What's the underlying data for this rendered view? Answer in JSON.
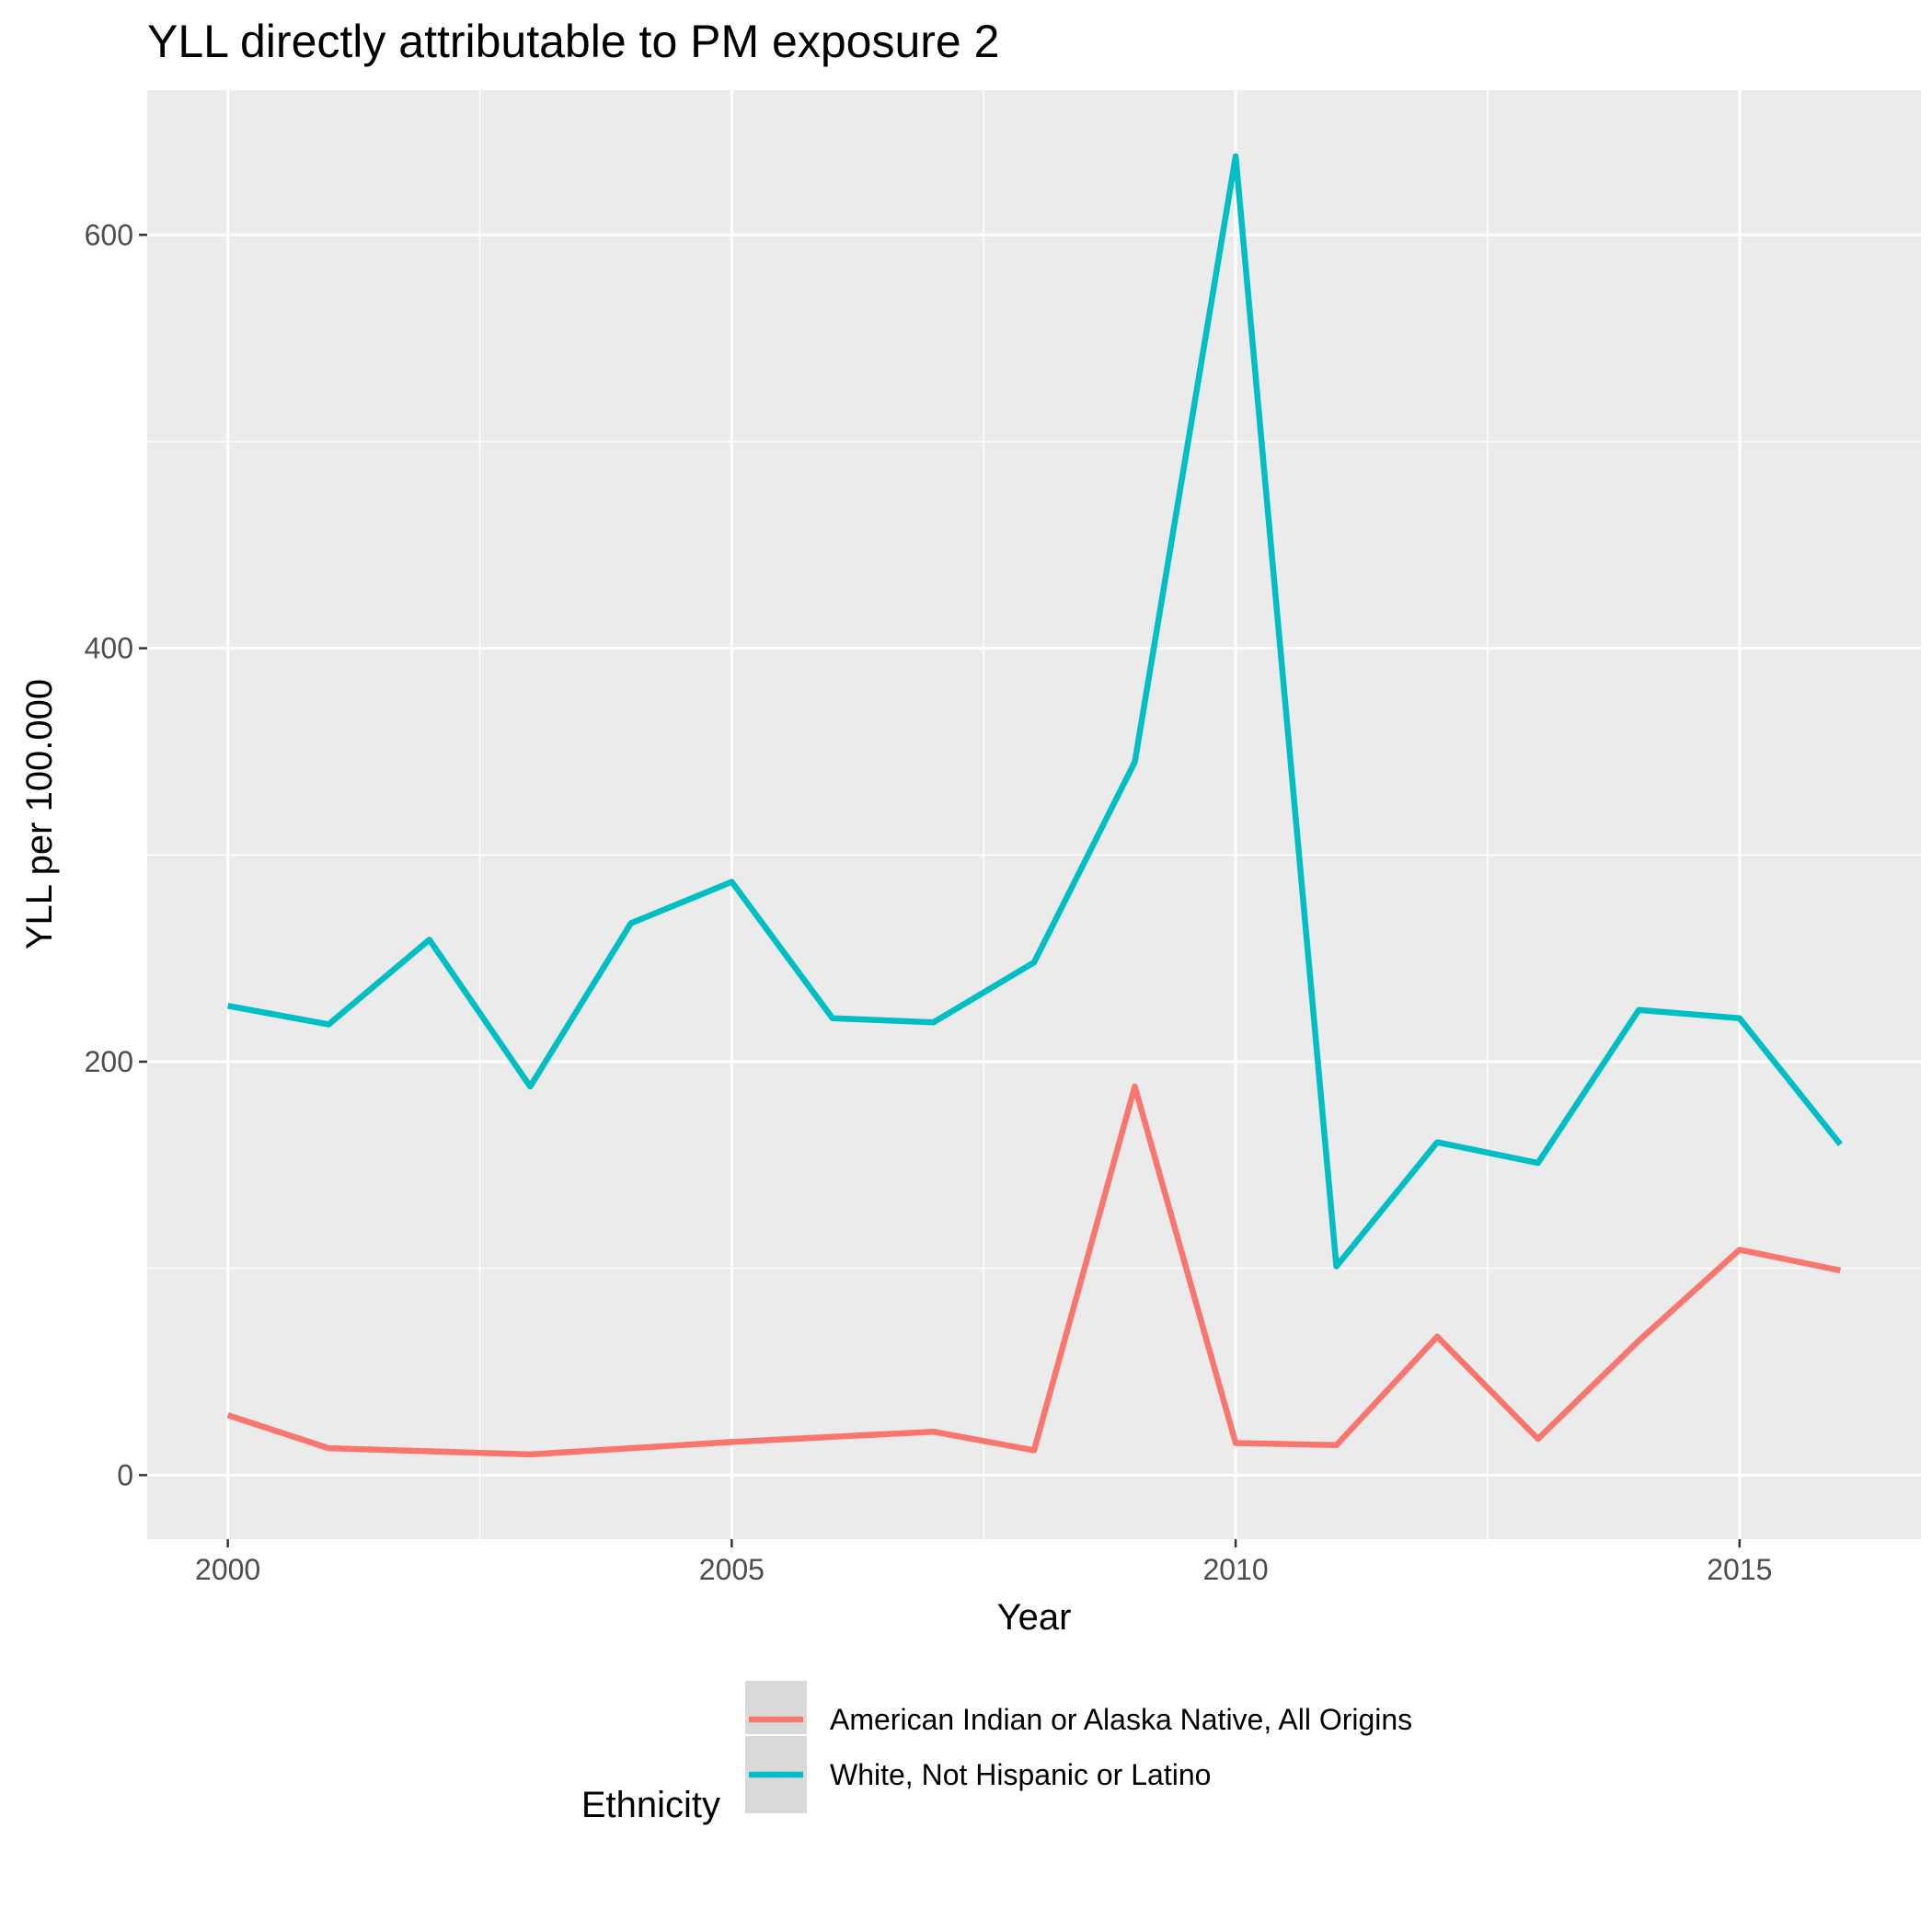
{
  "chart_data": {
    "type": "line",
    "title": "YLL directly attributable to PM exposure 2",
    "xlabel": "Year",
    "ylabel": "YLL per 100.000",
    "x": [
      2000,
      2001,
      2002,
      2003,
      2004,
      2005,
      2006,
      2007,
      2008,
      2009,
      2010,
      2011,
      2012,
      2013,
      2014,
      2015,
      2016
    ],
    "xlim": [
      1999.2,
      2016.8
    ],
    "ylim": [
      -31,
      670
    ],
    "x_ticks": [
      2000,
      2005,
      2010,
      2015
    ],
    "x_tick_labels": [
      "2000",
      "2005",
      "2010",
      "2015"
    ],
    "y_ticks": [
      0,
      200,
      400,
      600
    ],
    "y_tick_labels": [
      "0",
      "200",
      "400",
      "600"
    ],
    "grid": true,
    "legend": {
      "title": "Ethnicity",
      "position": "bottom"
    },
    "series": [
      {
        "name": "American Indian or Alaska Native, All Origins",
        "color": "#F8766D",
        "values": [
          29,
          13,
          11.5,
          10,
          13,
          16,
          18.5,
          21,
          12,
          188,
          15.5,
          14.5,
          67,
          17.5,
          65,
          109,
          99
        ]
      },
      {
        "name": "White, Not Hispanic or Latino",
        "color": "#00BFC4",
        "values": [
          227,
          218,
          259,
          188,
          267,
          287,
          221,
          219,
          248,
          345,
          638,
          101,
          161,
          151,
          225,
          221,
          160
        ]
      }
    ]
  }
}
